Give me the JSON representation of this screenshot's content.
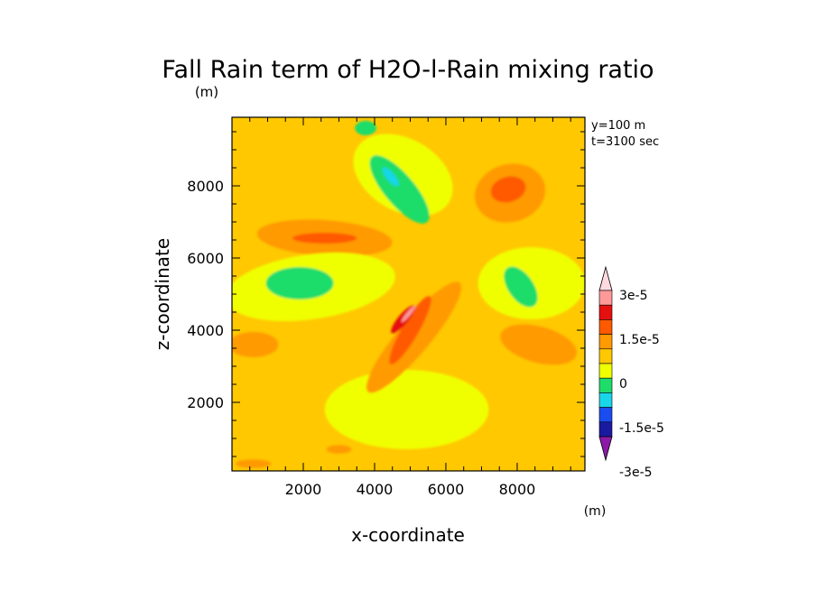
{
  "chart_data": {
    "type": "heatmap",
    "title": "Fall Rain term of H2O-l-Rain mixing ratio",
    "units_top": "(m)",
    "xlabel": "x-coordinate",
    "ylabel": "z-coordinate",
    "xlim": [
      0,
      9900
    ],
    "ylim": [
      100,
      9900
    ],
    "xticks": [
      2000,
      4000,
      6000,
      8000
    ],
    "yticks": [
      2000,
      4000,
      6000,
      8000
    ],
    "xtick_labels": [
      "2000",
      "4000",
      "6000",
      "8000"
    ],
    "ytick_labels": [
      "2000",
      "4000",
      "6000",
      "8000"
    ],
    "info": [
      "y=100 m",
      "t=3100 sec"
    ],
    "colorbar": {
      "colors": [
        "#8c1aa6",
        "#1a1aa0",
        "#1a4cf0",
        "#19d6e8",
        "#1fdc6a",
        "#f0ff00",
        "#ffc800",
        "#ff9a00",
        "#ff5a00",
        "#e60f0f",
        "#ff9999",
        "#ffd9e0"
      ],
      "tick_labels": [
        "3e-5",
        "1.5e-5",
        "0",
        "-1.5e-5",
        "-3e-5"
      ],
      "units": "(m)"
    },
    "features": [
      {
        "level": "#ff9a00",
        "kind": "ellipse",
        "cx": 2600,
        "cy": 6550,
        "rx": 1900,
        "ry": 500,
        "rot": -4
      },
      {
        "level": "#ff5a00",
        "kind": "ellipse",
        "cx": 2600,
        "cy": 6550,
        "rx": 900,
        "ry": 150,
        "rot": 0
      },
      {
        "level": "#ff9a00",
        "kind": "ellipse",
        "cx": 7800,
        "cy": 7800,
        "rx": 1000,
        "ry": 800,
        "rot": 15
      },
      {
        "level": "#ff5a00",
        "kind": "ellipse",
        "cx": 7750,
        "cy": 7900,
        "rx": 500,
        "ry": 350,
        "rot": 15
      },
      {
        "level": "#ff9a00",
        "kind": "ellipse",
        "cx": 8600,
        "cy": 3600,
        "rx": 1100,
        "ry": 500,
        "rot": -15
      },
      {
        "level": "#ff9a00",
        "kind": "ellipse",
        "cx": 600,
        "cy": 3600,
        "rx": 700,
        "ry": 350,
        "rot": 0
      },
      {
        "level": "#f0ff00",
        "kind": "ellipse",
        "cx": 2200,
        "cy": 5200,
        "rx": 2400,
        "ry": 900,
        "rot": 8
      },
      {
        "level": "#1fdc6a",
        "kind": "ellipse",
        "cx": 1900,
        "cy": 5300,
        "rx": 950,
        "ry": 450,
        "rot": 0
      },
      {
        "level": "#f0ff00",
        "kind": "ellipse",
        "cx": 8400,
        "cy": 5300,
        "rx": 1500,
        "ry": 1000,
        "rot": 0
      },
      {
        "level": "#1fdc6a",
        "kind": "ellipse",
        "cx": 8100,
        "cy": 5200,
        "rx": 650,
        "ry": 350,
        "rot": -55
      },
      {
        "level": "#f0ff00",
        "kind": "ellipse",
        "cx": 4800,
        "cy": 8300,
        "rx": 1500,
        "ry": 1000,
        "rot": -30
      },
      {
        "level": "#1fdc6a",
        "kind": "ellipse",
        "cx": 4700,
        "cy": 7900,
        "rx": 1200,
        "ry": 420,
        "rot": -50
      },
      {
        "level": "#19d6e8",
        "kind": "ellipse",
        "cx": 4450,
        "cy": 8250,
        "rx": 330,
        "ry": 120,
        "rot": -50
      },
      {
        "level": "#1fdc6a",
        "kind": "ellipse",
        "cx": 3750,
        "cy": 9600,
        "rx": 300,
        "ry": 200,
        "rot": 0
      },
      {
        "level": "#f0ff00",
        "kind": "ellipse",
        "cx": 4900,
        "cy": 1800,
        "rx": 2300,
        "ry": 1100,
        "rot": 0
      },
      {
        "level": "#ff9a00",
        "kind": "ellipse",
        "cx": 5100,
        "cy": 3800,
        "rx": 2000,
        "ry": 450,
        "rot": 50
      },
      {
        "level": "#ff5a00",
        "kind": "ellipse",
        "cx": 5000,
        "cy": 4000,
        "rx": 1100,
        "ry": 230,
        "rot": 60
      },
      {
        "level": "#e60f0f",
        "kind": "ellipse",
        "cx": 4800,
        "cy": 4300,
        "rx": 500,
        "ry": 140,
        "rot": 50
      },
      {
        "level": "#ff9999",
        "kind": "ellipse",
        "cx": 4950,
        "cy": 4450,
        "rx": 300,
        "ry": 60,
        "rot": 50
      },
      {
        "level": "#ff9a00",
        "kind": "ellipse",
        "cx": 600,
        "cy": 300,
        "rx": 500,
        "ry": 120,
        "rot": 0
      },
      {
        "level": "#ff9a00",
        "kind": "ellipse",
        "cx": 3000,
        "cy": 700,
        "rx": 350,
        "ry": 120,
        "rot": 0
      }
    ]
  }
}
